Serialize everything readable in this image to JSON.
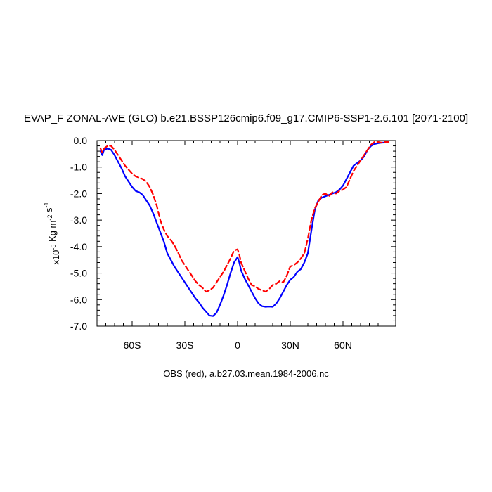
{
  "chart_data": {
    "type": "line",
    "title": "EVAP_F ZONAL-AVE (GLO) b.e21.BSSP126cmip6.f09_g17.CMIP6-SSP1-2.6.101 [2071-2100]",
    "xlabel": "OBS (red), a.b27.03.mean.1984-2006.nc",
    "ylabel": {
      "prefix": "x10",
      "exp1": "-5",
      "mid": " Kg m",
      "exp2": "-2",
      "mid2": " s",
      "exp3": "-1"
    },
    "xlim": [
      -80,
      90
    ],
    "ylim": [
      -7.0,
      0.0
    ],
    "x_ticks": [
      -60,
      -30,
      0,
      30,
      60
    ],
    "x_tick_labels": [
      "60S",
      "30S",
      "0",
      "30N",
      "60N"
    ],
    "y_ticks": [
      0.0,
      -1.0,
      -2.0,
      -3.0,
      -4.0,
      -5.0,
      -6.0,
      -7.0
    ],
    "y_tick_labels": [
      "0.0",
      "-1.0",
      "-2.0",
      "-3.0",
      "-4.0",
      "-5.0",
      "-6.0",
      "-7.0"
    ],
    "grid": false,
    "series": [
      {
        "color": "#0000ff",
        "dash": "solid",
        "points": [
          [
            -78,
            -0.4
          ],
          [
            -77,
            -0.55
          ],
          [
            -76,
            -0.35
          ],
          [
            -74,
            -0.3
          ],
          [
            -72,
            -0.35
          ],
          [
            -70,
            -0.55
          ],
          [
            -68,
            -0.8
          ],
          [
            -66,
            -1.05
          ],
          [
            -64,
            -1.35
          ],
          [
            -62,
            -1.55
          ],
          [
            -60,
            -1.75
          ],
          [
            -58,
            -1.9
          ],
          [
            -56,
            -1.95
          ],
          [
            -54,
            -2.05
          ],
          [
            -52,
            -2.25
          ],
          [
            -50,
            -2.45
          ],
          [
            -48,
            -2.75
          ],
          [
            -46,
            -3.1
          ],
          [
            -44,
            -3.45
          ],
          [
            -42,
            -3.8
          ],
          [
            -40,
            -4.25
          ],
          [
            -38,
            -4.5
          ],
          [
            -36,
            -4.75
          ],
          [
            -34,
            -4.95
          ],
          [
            -32,
            -5.15
          ],
          [
            -30,
            -5.35
          ],
          [
            -28,
            -5.55
          ],
          [
            -26,
            -5.75
          ],
          [
            -24,
            -5.95
          ],
          [
            -22,
            -6.1
          ],
          [
            -20,
            -6.3
          ],
          [
            -18,
            -6.45
          ],
          [
            -16,
            -6.6
          ],
          [
            -14,
            -6.62
          ],
          [
            -12,
            -6.5
          ],
          [
            -10,
            -6.2
          ],
          [
            -8,
            -5.85
          ],
          [
            -6,
            -5.45
          ],
          [
            -4,
            -5.0
          ],
          [
            -2,
            -4.6
          ],
          [
            0,
            -4.4
          ],
          [
            1,
            -4.6
          ],
          [
            2,
            -4.9
          ],
          [
            4,
            -5.2
          ],
          [
            6,
            -5.45
          ],
          [
            8,
            -5.7
          ],
          [
            10,
            -5.95
          ],
          [
            12,
            -6.15
          ],
          [
            14,
            -6.25
          ],
          [
            16,
            -6.27
          ],
          [
            18,
            -6.26
          ],
          [
            20,
            -6.27
          ],
          [
            22,
            -6.15
          ],
          [
            24,
            -5.95
          ],
          [
            26,
            -5.7
          ],
          [
            28,
            -5.45
          ],
          [
            30,
            -5.25
          ],
          [
            32,
            -5.15
          ],
          [
            34,
            -4.95
          ],
          [
            36,
            -4.85
          ],
          [
            38,
            -4.6
          ],
          [
            40,
            -4.25
          ],
          [
            42,
            -3.4
          ],
          [
            44,
            -2.6
          ],
          [
            46,
            -2.25
          ],
          [
            48,
            -2.15
          ],
          [
            50,
            -2.1
          ],
          [
            52,
            -2.05
          ],
          [
            54,
            -2.0
          ],
          [
            56,
            -1.95
          ],
          [
            58,
            -1.85
          ],
          [
            60,
            -1.7
          ],
          [
            62,
            -1.45
          ],
          [
            64,
            -1.2
          ],
          [
            66,
            -0.95
          ],
          [
            68,
            -0.85
          ],
          [
            70,
            -0.75
          ],
          [
            72,
            -0.6
          ],
          [
            74,
            -0.35
          ],
          [
            76,
            -0.2
          ],
          [
            78,
            -0.13
          ],
          [
            80,
            -0.1
          ],
          [
            82,
            -0.08
          ],
          [
            86,
            -0.07
          ]
        ]
      },
      {
        "color": "#ff0000",
        "dash": "dashed",
        "points": [
          [
            -78,
            -0.3
          ],
          [
            -77,
            -0.45
          ],
          [
            -76,
            -0.3
          ],
          [
            -74,
            -0.2
          ],
          [
            -72,
            -0.2
          ],
          [
            -70,
            -0.35
          ],
          [
            -68,
            -0.55
          ],
          [
            -66,
            -0.75
          ],
          [
            -64,
            -0.95
          ],
          [
            -62,
            -1.1
          ],
          [
            -60,
            -1.25
          ],
          [
            -58,
            -1.35
          ],
          [
            -56,
            -1.4
          ],
          [
            -54,
            -1.45
          ],
          [
            -52,
            -1.55
          ],
          [
            -50,
            -1.75
          ],
          [
            -48,
            -2.05
          ],
          [
            -46,
            -2.45
          ],
          [
            -44,
            -3.0
          ],
          [
            -42,
            -3.35
          ],
          [
            -40,
            -3.6
          ],
          [
            -38,
            -3.75
          ],
          [
            -36,
            -3.95
          ],
          [
            -34,
            -4.2
          ],
          [
            -32,
            -4.5
          ],
          [
            -30,
            -4.7
          ],
          [
            -28,
            -4.9
          ],
          [
            -26,
            -5.1
          ],
          [
            -24,
            -5.3
          ],
          [
            -22,
            -5.45
          ],
          [
            -20,
            -5.55
          ],
          [
            -18,
            -5.7
          ],
          [
            -16,
            -5.65
          ],
          [
            -14,
            -5.55
          ],
          [
            -12,
            -5.35
          ],
          [
            -10,
            -5.15
          ],
          [
            -8,
            -4.95
          ],
          [
            -6,
            -4.7
          ],
          [
            -4,
            -4.45
          ],
          [
            -2,
            -4.15
          ],
          [
            0,
            -4.1
          ],
          [
            1,
            -4.3
          ],
          [
            2,
            -4.6
          ],
          [
            4,
            -4.9
          ],
          [
            6,
            -5.2
          ],
          [
            8,
            -5.45
          ],
          [
            10,
            -5.5
          ],
          [
            12,
            -5.6
          ],
          [
            14,
            -5.65
          ],
          [
            16,
            -5.7
          ],
          [
            18,
            -5.6
          ],
          [
            20,
            -5.45
          ],
          [
            22,
            -5.4
          ],
          [
            24,
            -5.3
          ],
          [
            26,
            -5.35
          ],
          [
            28,
            -5.1
          ],
          [
            30,
            -4.75
          ],
          [
            32,
            -4.7
          ],
          [
            34,
            -4.6
          ],
          [
            36,
            -4.45
          ],
          [
            38,
            -4.25
          ],
          [
            40,
            -3.7
          ],
          [
            42,
            -3.0
          ],
          [
            44,
            -2.55
          ],
          [
            46,
            -2.3
          ],
          [
            48,
            -2.05
          ],
          [
            50,
            -2.0
          ],
          [
            52,
            -2.1
          ],
          [
            54,
            -1.95
          ],
          [
            56,
            -2.0
          ],
          [
            58,
            -1.9
          ],
          [
            60,
            -1.85
          ],
          [
            62,
            -1.75
          ],
          [
            64,
            -1.45
          ],
          [
            66,
            -1.15
          ],
          [
            68,
            -0.95
          ],
          [
            70,
            -0.75
          ],
          [
            72,
            -0.55
          ],
          [
            74,
            -0.35
          ],
          [
            76,
            -0.15
          ],
          [
            78,
            -0.05
          ],
          [
            80,
            -0.05
          ],
          [
            82,
            -0.08
          ],
          [
            84,
            -0.05
          ],
          [
            86,
            -0.05
          ]
        ]
      }
    ]
  }
}
